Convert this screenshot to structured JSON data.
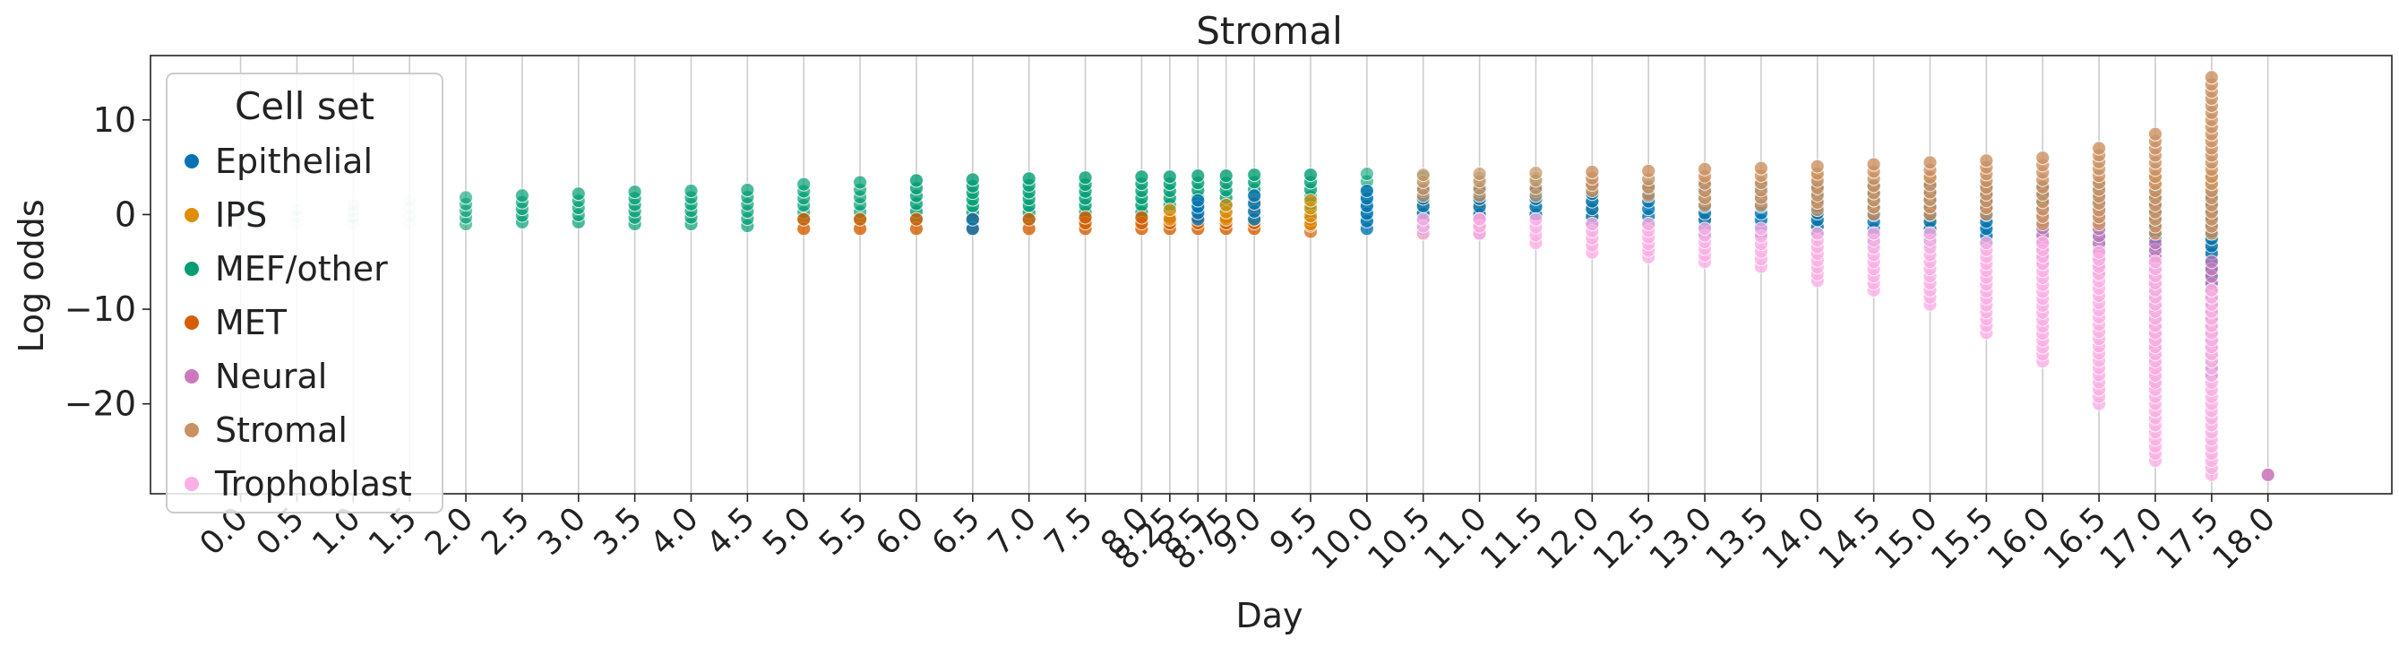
{
  "chart_data": {
    "type": "scatter",
    "title": "Stromal",
    "xlabel": "Day",
    "ylabel": "Log odds",
    "ylim": [
      -29.5,
      16.8
    ],
    "yticks": [
      10,
      0,
      -10,
      -20
    ],
    "ytick_labels": [
      "10",
      "0",
      "−10",
      "−20"
    ],
    "grid": "vertical",
    "legend": {
      "title": "Cell set",
      "position": "upper-left",
      "entries": [
        {
          "name": "Epithelial",
          "color": "#0173b2"
        },
        {
          "name": "IPS",
          "color": "#de8f05"
        },
        {
          "name": "MEF/other",
          "color": "#029e73"
        },
        {
          "name": "MET",
          "color": "#d55e00"
        },
        {
          "name": "Neural",
          "color": "#cc78bc"
        },
        {
          "name": "Stromal",
          "color": "#ca9161"
        },
        {
          "name": "Trophoblast",
          "color": "#fbafe4"
        }
      ]
    },
    "x": [
      0.0,
      0.5,
      1.0,
      1.5,
      2.0,
      2.5,
      3.0,
      3.5,
      4.0,
      4.5,
      5.0,
      5.5,
      6.0,
      6.5,
      7.0,
      7.5,
      8.0,
      8.25,
      8.5,
      8.75,
      9.0,
      9.5,
      10.0,
      10.5,
      11.0,
      11.5,
      12.0,
      12.5,
      13.0,
      13.5,
      14.0,
      14.5,
      15.0,
      15.5,
      16.0,
      16.5,
      17.0,
      17.5,
      18.0
    ],
    "x_labels": [
      "0.0",
      "0.5",
      "1.0",
      "1.5",
      "2.0",
      "2.5",
      "3.0",
      "3.5",
      "4.0",
      "4.5",
      "5.0",
      "5.5",
      "6.0",
      "6.5",
      "7.0",
      "7.5",
      "8.0",
      "8.25",
      "8.5",
      "8.75",
      "9.0",
      "9.5",
      "10.0",
      "10.5",
      "11.0",
      "11.5",
      "12.0",
      "12.5",
      "13.0",
      "13.5",
      "14.0",
      "14.5",
      "15.0",
      "15.5",
      "16.0",
      "16.5",
      "17.0",
      "17.5",
      "18.0"
    ],
    "series": [
      {
        "name": "MEF/other",
        "color": "#029e73",
        "points": [
          {
            "x": "0.0",
            "y_min": -1.0,
            "y_max": 0.0,
            "alpha": 0.12
          },
          {
            "x": "0.5",
            "y_min": -1.0,
            "y_max": 0.5,
            "alpha": 0.12
          },
          {
            "x": "1.0",
            "y_min": -1.0,
            "y_max": 1.0,
            "alpha": 0.15
          },
          {
            "x": "1.5",
            "y_min": -1.0,
            "y_max": 1.5,
            "alpha": 0.15
          },
          {
            "x": "2.0",
            "y_min": -1.0,
            "y_max": 1.8,
            "alpha": 0.6
          },
          {
            "x": "2.5",
            "y_min": -0.8,
            "y_max": 2.0,
            "alpha": 0.7
          },
          {
            "x": "3.0",
            "y_min": -0.8,
            "y_max": 2.2,
            "alpha": 0.7
          },
          {
            "x": "3.5",
            "y_min": -1.0,
            "y_max": 2.4,
            "alpha": 0.7
          },
          {
            "x": "4.0",
            "y_min": -1.0,
            "y_max": 2.5,
            "alpha": 0.7
          },
          {
            "x": "4.5",
            "y_min": -1.2,
            "y_max": 2.6,
            "alpha": 0.7
          },
          {
            "x": "5.0",
            "y_min": -0.5,
            "y_max": 3.2,
            "alpha": 0.7
          },
          {
            "x": "5.5",
            "y_min": -0.5,
            "y_max": 3.4,
            "alpha": 0.7
          },
          {
            "x": "6.0",
            "y_min": -0.5,
            "y_max": 3.6,
            "alpha": 0.8
          },
          {
            "x": "6.5",
            "y_min": -0.5,
            "y_max": 3.7,
            "alpha": 0.8
          },
          {
            "x": "7.0",
            "y_min": -0.5,
            "y_max": 3.8,
            "alpha": 0.8
          },
          {
            "x": "7.5",
            "y_min": -0.5,
            "y_max": 3.9,
            "alpha": 0.8
          },
          {
            "x": "8.0",
            "y_min": -0.5,
            "y_max": 4.0,
            "alpha": 0.8
          },
          {
            "x": "8.25",
            "y_min": -0.5,
            "y_max": 4.0,
            "alpha": 0.8
          },
          {
            "x": "8.5",
            "y_min": -0.5,
            "y_max": 4.1,
            "alpha": 0.8
          },
          {
            "x": "8.75",
            "y_min": -0.5,
            "y_max": 4.1,
            "alpha": 0.8
          },
          {
            "x": "9.0",
            "y_min": -0.5,
            "y_max": 4.2,
            "alpha": 0.8
          },
          {
            "x": "9.5",
            "y_min": -0.5,
            "y_max": 4.2,
            "alpha": 0.8
          },
          {
            "x": "10.0",
            "y_min": -0.5,
            "y_max": 4.3,
            "alpha": 0.6
          },
          {
            "x": "10.5",
            "y_min": 0.0,
            "y_max": 4.0,
            "alpha": 0.5
          },
          {
            "x": "11.0",
            "y_min": 0.0,
            "y_max": 3.8,
            "alpha": 0.4
          },
          {
            "x": "11.5",
            "y_min": 0.0,
            "y_max": 3.8,
            "alpha": 0.4
          },
          {
            "x": "12.0",
            "y_min": 0.5,
            "y_max": 3.5,
            "alpha": 0.4
          },
          {
            "x": "15.5",
            "y_min": -2.0,
            "y_max": 2.0,
            "alpha": 0.4
          },
          {
            "x": "16.0",
            "y_min": -3.0,
            "y_max": 2.0,
            "alpha": 0.4
          },
          {
            "x": "17.0",
            "y_min": -8.0,
            "y_max": 0.0,
            "alpha": 0.5
          },
          {
            "x": "17.5",
            "y_min": -8.0,
            "y_max": 0.0,
            "alpha": 0.5
          }
        ]
      },
      {
        "name": "MET",
        "color": "#d55e00",
        "points": [
          {
            "x": "5.0",
            "y_min": -1.5,
            "y_max": -0.5,
            "alpha": 0.8
          },
          {
            "x": "5.5",
            "y_min": -1.5,
            "y_max": -0.5,
            "alpha": 0.8
          },
          {
            "x": "6.0",
            "y_min": -1.5,
            "y_max": -0.5,
            "alpha": 0.8
          },
          {
            "x": "6.5",
            "y_min": -1.5,
            "y_max": -0.5,
            "alpha": 0.8
          },
          {
            "x": "7.0",
            "y_min": -1.5,
            "y_max": -0.5,
            "alpha": 0.8
          },
          {
            "x": "7.5",
            "y_min": -1.5,
            "y_max": -0.3,
            "alpha": 0.8
          },
          {
            "x": "8.0",
            "y_min": -1.5,
            "y_max": -0.3,
            "alpha": 0.8
          },
          {
            "x": "8.25",
            "y_min": -1.5,
            "y_max": -0.3,
            "alpha": 0.8
          },
          {
            "x": "8.5",
            "y_min": -1.5,
            "y_max": -0.3,
            "alpha": 0.8
          },
          {
            "x": "8.75",
            "y_min": -1.5,
            "y_max": -0.3,
            "alpha": 0.8
          },
          {
            "x": "9.0",
            "y_min": -1.5,
            "y_max": -0.3,
            "alpha": 0.8
          },
          {
            "x": "9.5",
            "y_min": -1.8,
            "y_max": -0.5,
            "alpha": 0.7
          }
        ]
      },
      {
        "name": "IPS",
        "color": "#de8f05",
        "points": [
          {
            "x": "8.25",
            "y_min": -0.5,
            "y_max": 0.5,
            "alpha": 0.7
          },
          {
            "x": "8.75",
            "y_min": -0.5,
            "y_max": 1.0,
            "alpha": 0.7
          },
          {
            "x": "9.0",
            "y_min": -0.5,
            "y_max": 1.5,
            "alpha": 0.7
          },
          {
            "x": "9.5",
            "y_min": -1.0,
            "y_max": 1.5,
            "alpha": 0.7
          },
          {
            "x": "10.5",
            "y_min": -2.0,
            "y_max": 2.0,
            "alpha": 0.7
          },
          {
            "x": "11.0",
            "y_min": -1.0,
            "y_max": 2.0,
            "alpha": 0.7
          },
          {
            "x": "12.0",
            "y_min": -1.0,
            "y_max": 3.0,
            "alpha": 0.7
          },
          {
            "x": "13.0",
            "y_min": -2.0,
            "y_max": 3.5,
            "alpha": 0.7
          },
          {
            "x": "14.0",
            "y_min": -2.0,
            "y_max": 4.0,
            "alpha": 0.7
          },
          {
            "x": "15.0",
            "y_min": -2.0,
            "y_max": 4.0,
            "alpha": 0.7
          },
          {
            "x": "16.0",
            "y_min": -4.0,
            "y_max": 3.0,
            "alpha": 0.7
          },
          {
            "x": "17.0",
            "y_min": -8.0,
            "y_max": 4.0,
            "alpha": 0.7
          },
          {
            "x": "17.5",
            "y_min": -12.0,
            "y_max": 4.0,
            "alpha": 0.7
          }
        ]
      },
      {
        "name": "Epithelial",
        "color": "#0173b2",
        "points": [
          {
            "x": "6.5",
            "y_min": -1.5,
            "y_max": -0.5,
            "alpha": 0.8
          },
          {
            "x": "8.5",
            "y_min": -0.5,
            "y_max": 1.5,
            "alpha": 0.8
          },
          {
            "x": "9.0",
            "y_min": -0.5,
            "y_max": 2.0,
            "alpha": 0.8
          },
          {
            "x": "10.0",
            "y_min": -1.5,
            "y_max": 2.5,
            "alpha": 0.8
          },
          {
            "x": "10.5",
            "y_min": -1.5,
            "y_max": 2.5,
            "alpha": 0.8
          },
          {
            "x": "11.0",
            "y_min": 0.0,
            "y_max": 2.5,
            "alpha": 0.8
          },
          {
            "x": "11.5",
            "y_min": 0.0,
            "y_max": 2.5,
            "alpha": 0.8
          },
          {
            "x": "12.0",
            "y_min": -1.0,
            "y_max": 3.0,
            "alpha": 0.8
          },
          {
            "x": "12.5",
            "y_min": -1.0,
            "y_max": 3.0,
            "alpha": 0.8
          },
          {
            "x": "13.0",
            "y_min": -2.0,
            "y_max": 3.0,
            "alpha": 0.8
          },
          {
            "x": "13.5",
            "y_min": -2.0,
            "y_max": 3.0,
            "alpha": 0.8
          },
          {
            "x": "14.0",
            "y_min": -2.0,
            "y_max": 3.0,
            "alpha": 0.8
          },
          {
            "x": "14.5",
            "y_min": -3.0,
            "y_max": 3.0,
            "alpha": 0.8
          },
          {
            "x": "15.0",
            "y_min": -3.0,
            "y_max": 3.0,
            "alpha": 0.8
          },
          {
            "x": "15.5",
            "y_min": -3.0,
            "y_max": 3.0,
            "alpha": 0.8
          },
          {
            "x": "16.0",
            "y_min": -4.0,
            "y_max": 3.0,
            "alpha": 0.8
          },
          {
            "x": "16.5",
            "y_min": -4.0,
            "y_max": 3.0,
            "alpha": 0.8
          },
          {
            "x": "17.0",
            "y_min": -14.0,
            "y_max": 2.0,
            "alpha": 0.8
          },
          {
            "x": "17.5",
            "y_min": -17.0,
            "y_max": 2.0,
            "alpha": 0.8
          }
        ]
      },
      {
        "name": "Neural",
        "color": "#cc78bc",
        "points": [
          {
            "x": "11.0",
            "y_min": -2.0,
            "y_max": -0.5,
            "alpha": 0.7
          },
          {
            "x": "16.0",
            "y_min": -5.0,
            "y_max": 0.0,
            "alpha": 0.7
          },
          {
            "x": "16.5",
            "y_min": -6.0,
            "y_max": 0.0,
            "alpha": 0.7
          },
          {
            "x": "17.0",
            "y_min": -18.0,
            "y_max": -3.0,
            "alpha": 0.7
          },
          {
            "x": "17.5",
            "y_min": -15.0,
            "y_max": -5.0,
            "alpha": 0.7
          },
          {
            "x": "18.0",
            "y_min": -27.5,
            "y_max": -27.5,
            "alpha": 0.9
          }
        ]
      },
      {
        "name": "Stromal",
        "color": "#ca9161",
        "points": [
          {
            "x": "10.5",
            "y_min": 2.0,
            "y_max": 4.2,
            "alpha": 0.7
          },
          {
            "x": "11.0",
            "y_min": 2.0,
            "y_max": 4.3,
            "alpha": 0.7
          },
          {
            "x": "11.5",
            "y_min": 2.0,
            "y_max": 4.4,
            "alpha": 0.7
          },
          {
            "x": "12.0",
            "y_min": 2.5,
            "y_max": 4.5,
            "alpha": 0.8
          },
          {
            "x": "12.5",
            "y_min": 2.0,
            "y_max": 4.6,
            "alpha": 0.8
          },
          {
            "x": "13.0",
            "y_min": 1.0,
            "y_max": 4.8,
            "alpha": 0.8
          },
          {
            "x": "13.5",
            "y_min": 1.0,
            "y_max": 4.9,
            "alpha": 0.8
          },
          {
            "x": "14.0",
            "y_min": 0.5,
            "y_max": 5.1,
            "alpha": 0.8
          },
          {
            "x": "14.5",
            "y_min": 0.0,
            "y_max": 5.3,
            "alpha": 0.8
          },
          {
            "x": "15.0",
            "y_min": 0.0,
            "y_max": 5.5,
            "alpha": 0.8
          },
          {
            "x": "15.5",
            "y_min": 0.0,
            "y_max": 5.7,
            "alpha": 0.8
          },
          {
            "x": "16.0",
            "y_min": -1.0,
            "y_max": 6.0,
            "alpha": 0.8
          },
          {
            "x": "16.5",
            "y_min": -1.0,
            "y_max": 7.0,
            "alpha": 0.8
          },
          {
            "x": "17.0",
            "y_min": -2.0,
            "y_max": 8.5,
            "alpha": 0.8
          },
          {
            "x": "17.5",
            "y_min": -2.0,
            "y_max": 14.5,
            "alpha": 0.8
          }
        ]
      },
      {
        "name": "Trophoblast",
        "color": "#fbafe4",
        "points": [
          {
            "x": "10.5",
            "y_min": -2.0,
            "y_max": -0.5,
            "alpha": 0.8
          },
          {
            "x": "11.0",
            "y_min": -2.0,
            "y_max": -0.5,
            "alpha": 0.8
          },
          {
            "x": "11.5",
            "y_min": -3.0,
            "y_max": -0.5,
            "alpha": 0.8
          },
          {
            "x": "12.0",
            "y_min": -4.0,
            "y_max": -1.0,
            "alpha": 0.8
          },
          {
            "x": "12.5",
            "y_min": -4.5,
            "y_max": -1.0,
            "alpha": 0.8
          },
          {
            "x": "13.0",
            "y_min": -5.0,
            "y_max": -1.5,
            "alpha": 0.8
          },
          {
            "x": "13.5",
            "y_min": -5.5,
            "y_max": -1.5,
            "alpha": 0.8
          },
          {
            "x": "14.0",
            "y_min": -7.0,
            "y_max": -2.0,
            "alpha": 0.8
          },
          {
            "x": "14.5",
            "y_min": -8.0,
            "y_max": -2.0,
            "alpha": 0.8
          },
          {
            "x": "15.0",
            "y_min": -9.5,
            "y_max": -2.0,
            "alpha": 0.8
          },
          {
            "x": "15.5",
            "y_min": -12.5,
            "y_max": -3.0,
            "alpha": 0.8
          },
          {
            "x": "16.0",
            "y_min": -15.5,
            "y_max": -3.0,
            "alpha": 0.8
          },
          {
            "x": "16.5",
            "y_min": -20.0,
            "y_max": -4.0,
            "alpha": 0.8
          },
          {
            "x": "17.0",
            "y_min": -26.0,
            "y_max": -5.0,
            "alpha": 0.8
          },
          {
            "x": "17.5",
            "y_min": -27.5,
            "y_max": -8.0,
            "alpha": 0.8
          }
        ]
      }
    ]
  }
}
